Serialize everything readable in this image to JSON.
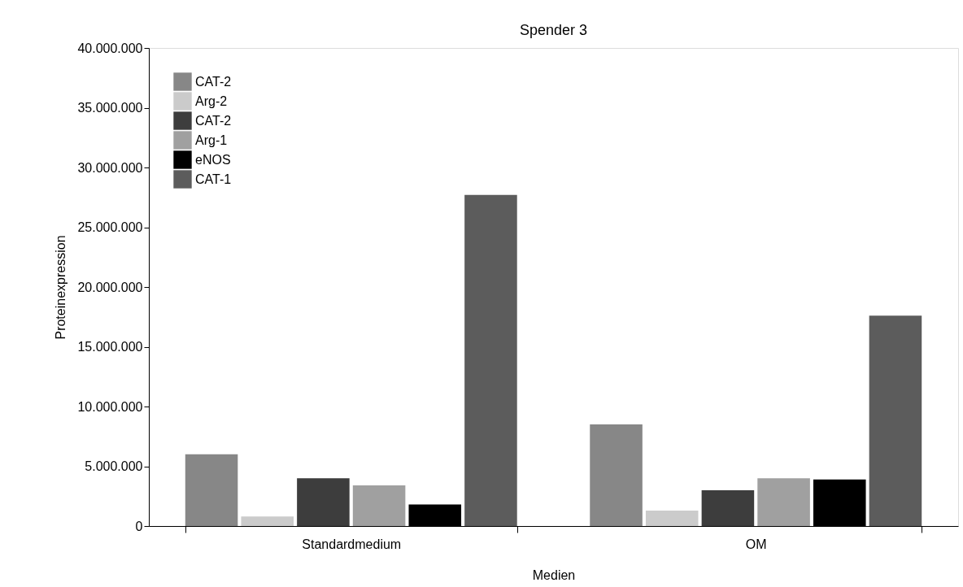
{
  "chart_data": {
    "type": "bar",
    "title": "Spender 3",
    "xlabel": "Medien",
    "ylabel": "Proteinexpression",
    "categories": [
      "Standardmedium",
      "OM"
    ],
    "series": [
      {
        "name": "CAT-2",
        "color": "#878787",
        "values": [
          6000000,
          8500000
        ]
      },
      {
        "name": "Arg-2",
        "color": "#cbcbcb",
        "values": [
          800000,
          1300000
        ]
      },
      {
        "name": "CAT-2",
        "color": "#3d3d3d",
        "values": [
          4000000,
          3000000
        ]
      },
      {
        "name": "Arg-1",
        "color": "#a0a0a0",
        "values": [
          3400000,
          4000000
        ]
      },
      {
        "name": "eNOS",
        "color": "#000000",
        "values": [
          1800000,
          3900000
        ]
      },
      {
        "name": "CAT-1",
        "color": "#5c5c5c",
        "values": [
          27700000,
          17600000
        ]
      }
    ],
    "ylim": [
      0,
      40000000
    ],
    "yticks": [
      {
        "value": 0,
        "label": "0"
      },
      {
        "value": 5000000,
        "label": "5.000.000"
      },
      {
        "value": 10000000,
        "label": "10.000.000"
      },
      {
        "value": 15000000,
        "label": "15.000.000"
      },
      {
        "value": 20000000,
        "label": "20.000.000"
      },
      {
        "value": 25000000,
        "label": "25.000.000"
      },
      {
        "value": 30000000,
        "label": "30.000.000"
      },
      {
        "value": 35000000,
        "label": "35.000.000"
      },
      {
        "value": 40000000,
        "label": "40.000.000"
      }
    ],
    "grid": false,
    "legend": "top left"
  }
}
